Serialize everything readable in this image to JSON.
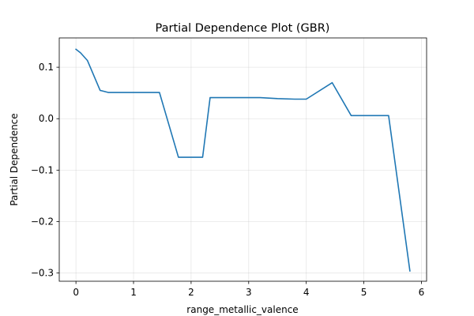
{
  "chart_data": {
    "type": "line",
    "title": "Partial Dependence Plot (GBR)",
    "xlabel": "range_metallic_valence",
    "ylabel": "Partial Dependence",
    "xlim": [
      -0.29,
      6.09
    ],
    "ylim": [
      -0.316,
      0.157
    ],
    "xticks": [
      0,
      1,
      2,
      3,
      4,
      5,
      6
    ],
    "xtick_labels": [
      "0",
      "1",
      "2",
      "3",
      "4",
      "5",
      "6"
    ],
    "yticks": [
      -0.3,
      -0.2,
      -0.1,
      0.0,
      0.1
    ],
    "ytick_labels": [
      "−0.3",
      "−0.2",
      "−0.1",
      "0.0",
      "0.1"
    ],
    "grid": true,
    "series": [
      {
        "color": "#1f77b4",
        "x": [
          0.0,
          0.08,
          0.2,
          0.42,
          0.56,
          1.45,
          1.78,
          2.0,
          2.2,
          2.33,
          2.6,
          3.2,
          3.5,
          3.8,
          4.0,
          4.45,
          4.78,
          5.0,
          5.43,
          5.8
        ],
        "y": [
          0.135,
          0.128,
          0.113,
          0.055,
          0.051,
          0.051,
          -0.075,
          -0.075,
          -0.075,
          0.041,
          0.041,
          0.041,
          0.039,
          0.038,
          0.038,
          0.07,
          0.006,
          0.006,
          0.006,
          -0.296
        ]
      }
    ]
  }
}
